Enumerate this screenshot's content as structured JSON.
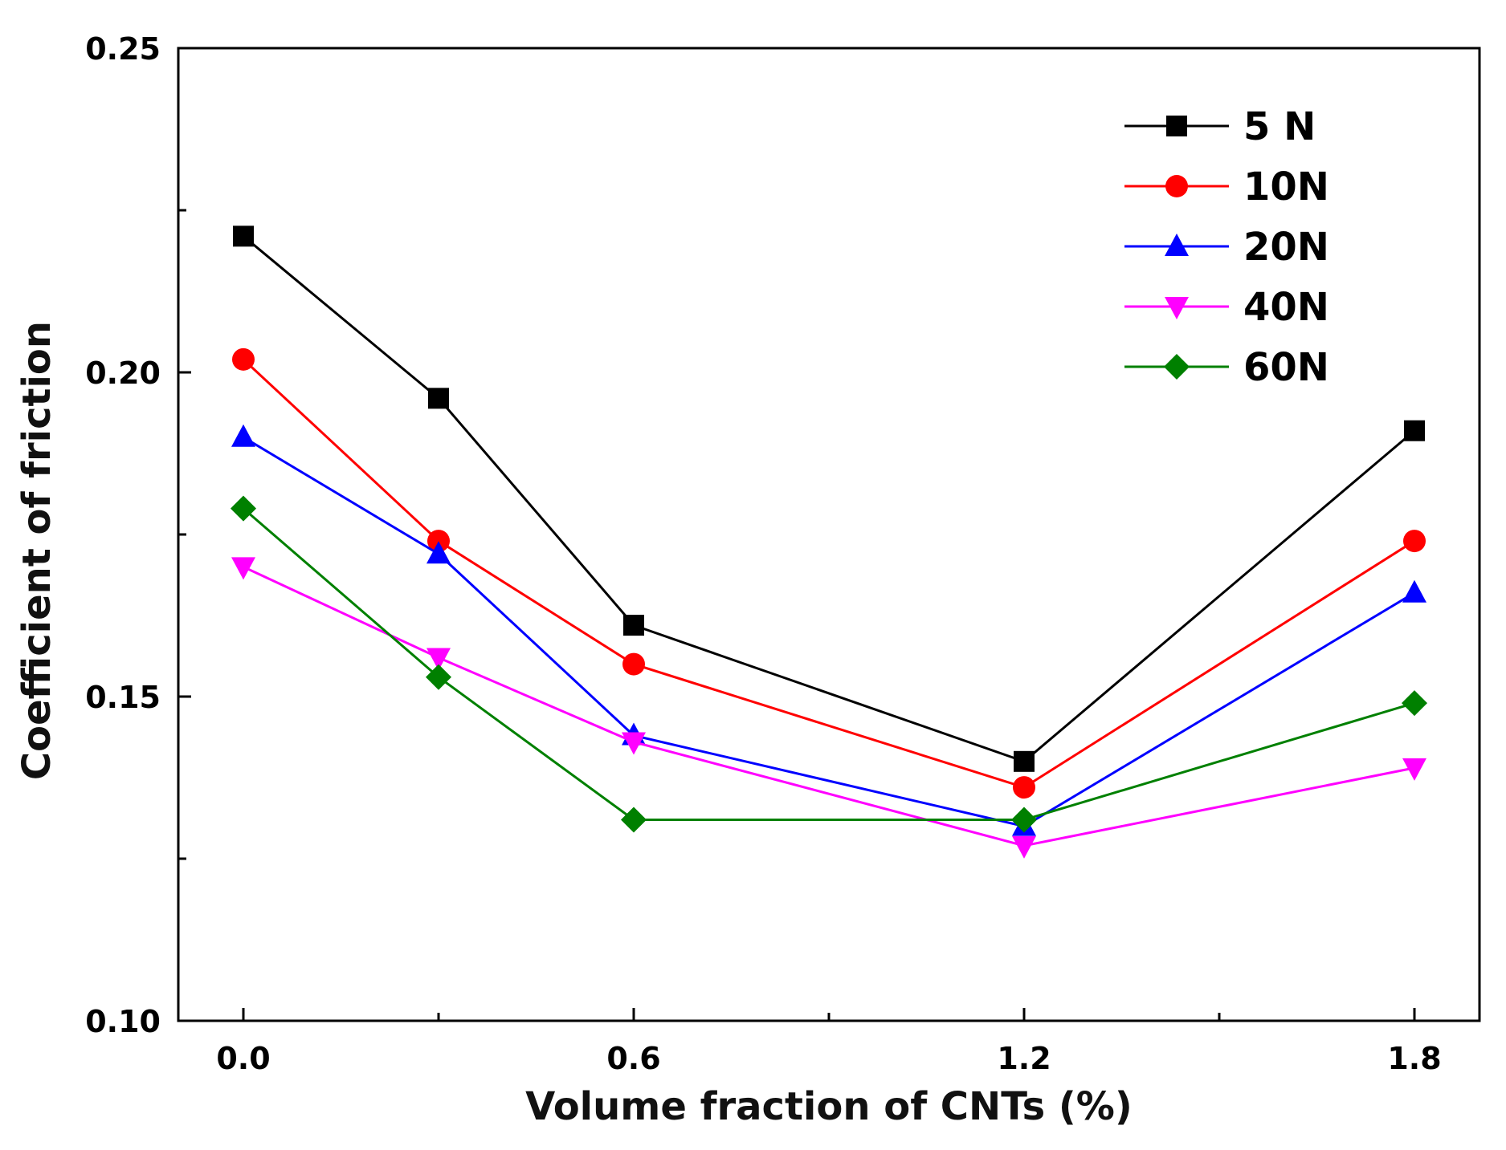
{
  "chart_data": {
    "type": "line",
    "title": "",
    "xlabel": "Volume fraction of CNTs (%)",
    "ylabel": "Coefficient of friction",
    "x": [
      0.0,
      0.3,
      0.6,
      1.2,
      1.8
    ],
    "xlim": [
      -0.1,
      1.9
    ],
    "ylim": [
      0.1,
      0.25
    ],
    "x_ticks": [
      0.0,
      0.3,
      0.6,
      0.9,
      1.2,
      1.5,
      1.8
    ],
    "x_tick_labels": [
      {
        "value": 0.0,
        "label": "0.0"
      },
      {
        "value": 0.6,
        "label": "0.6"
      },
      {
        "value": 1.2,
        "label": "1.2"
      },
      {
        "value": 1.8,
        "label": "1.8"
      }
    ],
    "y_ticks": [
      0.1,
      0.125,
      0.15,
      0.175,
      0.2,
      0.225,
      0.25
    ],
    "y_tick_labels": [
      {
        "value": 0.1,
        "label": "0.10"
      },
      {
        "value": 0.15,
        "label": "0.15"
      },
      {
        "value": 0.2,
        "label": "0.20"
      },
      {
        "value": 0.25,
        "label": "0.25"
      }
    ],
    "grid": false,
    "legend_position": "top-right",
    "series": [
      {
        "name": "5 N",
        "color": "#000000",
        "marker": "square",
        "values": [
          0.221,
          0.196,
          0.161,
          0.14,
          0.191
        ]
      },
      {
        "name": "10N",
        "color": "#ff0000",
        "marker": "circle",
        "values": [
          0.202,
          0.174,
          0.155,
          0.136,
          0.174
        ]
      },
      {
        "name": "20N",
        "color": "#0000ff",
        "marker": "triangle-up",
        "values": [
          0.19,
          0.172,
          0.144,
          0.13,
          0.166
        ]
      },
      {
        "name": "40N",
        "color": "#ff00ff",
        "marker": "triangle-down",
        "values": [
          0.17,
          0.156,
          0.143,
          0.127,
          0.139
        ]
      },
      {
        "name": "60N",
        "color": "#008000",
        "marker": "diamond",
        "values": [
          0.179,
          0.153,
          0.131,
          0.131,
          0.149
        ]
      }
    ]
  }
}
